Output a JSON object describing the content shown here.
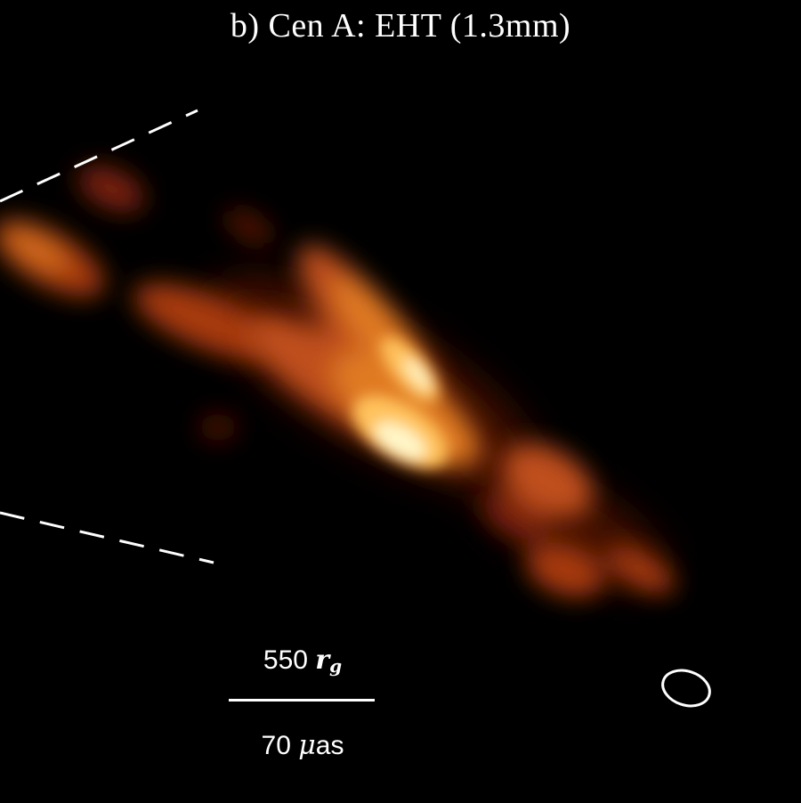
{
  "figure": {
    "title": "b) Cen A: EHT (1.3mm)",
    "scalebar": {
      "top_value": "550",
      "top_unit_symbol": "r",
      "top_unit_subscript": "g",
      "bottom_value": "70",
      "bottom_unit_prefix": "μ",
      "bottom_unit": "as"
    },
    "colors": {
      "background": "#000000",
      "foreground": "#ffffff",
      "colormap": [
        "#000000",
        "#5a1204",
        "#a83a0c",
        "#e07a24",
        "#ffc25c",
        "#fff6c8"
      ]
    },
    "icons": {
      "beam": "beam-ellipse-icon",
      "cone": "jet-cone-dashed-lines"
    }
  }
}
